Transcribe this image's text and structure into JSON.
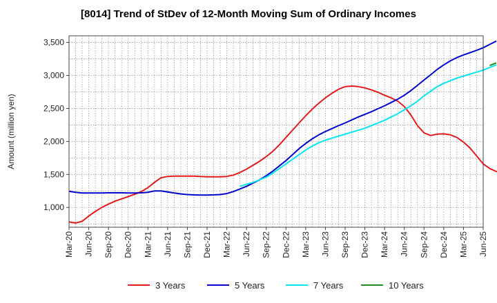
{
  "chart_data": {
    "type": "line",
    "title": "[8014]  Trend of StDev of 12-Month Moving Sum of Ordinary Incomes",
    "ylabel": "Amount (million yen)",
    "xlabel": "",
    "ylim": [
      700,
      3600
    ],
    "yticks": [
      1000,
      1500,
      2000,
      2500,
      3000,
      3500
    ],
    "ytick_labels": [
      "1,000",
      "1,500",
      "2,000",
      "2,500",
      "3,000",
      "3,500"
    ],
    "x_categories": [
      "Mar-20",
      "Jun-20",
      "Sep-20",
      "Dec-20",
      "Mar-21",
      "Jun-21",
      "Sep-21",
      "Dec-21",
      "Mar-22",
      "Jun-22",
      "Sep-22",
      "Dec-22",
      "Mar-23",
      "Jun-23",
      "Sep-23",
      "Dec-23",
      "Mar-24",
      "Jun-24",
      "Sep-24",
      "Dec-24",
      "Mar-25",
      "Jun-25"
    ],
    "grid": true,
    "legend_position": "bottom",
    "series": [
      {
        "name": "3 Years",
        "color": "#e31a1c",
        "start_index": 0,
        "values": [
          780,
          765,
          790,
          870,
          940,
          1000,
          1050,
          1095,
          1130,
          1165,
          1200,
          1240,
          1300,
          1380,
          1450,
          1470,
          1475,
          1475,
          1475,
          1475,
          1470,
          1465,
          1465,
          1465,
          1470,
          1490,
          1530,
          1580,
          1640,
          1700,
          1770,
          1850,
          1950,
          2060,
          2170,
          2280,
          2390,
          2490,
          2580,
          2660,
          2730,
          2790,
          2830,
          2840,
          2830,
          2810,
          2780,
          2745,
          2700,
          2660,
          2610,
          2530,
          2400,
          2240,
          2130,
          2090,
          2110,
          2115,
          2100,
          2060,
          1990,
          1900,
          1780,
          1660,
          1590,
          1545,
          1535
        ]
      },
      {
        "name": "5 Years",
        "color": "#0000cd",
        "start_index": 0,
        "values": [
          1245,
          1230,
          1220,
          1220,
          1220,
          1220,
          1222,
          1222,
          1222,
          1220,
          1220,
          1222,
          1230,
          1250,
          1250,
          1235,
          1220,
          1205,
          1195,
          1190,
          1188,
          1188,
          1190,
          1195,
          1210,
          1240,
          1280,
          1320,
          1370,
          1420,
          1480,
          1550,
          1630,
          1710,
          1800,
          1890,
          1970,
          2040,
          2100,
          2150,
          2195,
          2240,
          2280,
          2325,
          2370,
          2410,
          2450,
          2495,
          2540,
          2590,
          2640,
          2700,
          2770,
          2850,
          2930,
          3010,
          3090,
          3160,
          3220,
          3270,
          3310,
          3345,
          3380,
          3420,
          3470,
          3520
        ]
      },
      {
        "name": "7 Years",
        "color": "#00e5ee",
        "start_index": 26,
        "values": [
          1320,
          1350,
          1380,
          1420,
          1460,
          1520,
          1590,
          1660,
          1730,
          1800,
          1870,
          1930,
          1980,
          2020,
          2050,
          2080,
          2110,
          2140,
          2170,
          2200,
          2240,
          2280,
          2320,
          2370,
          2420,
          2480,
          2540,
          2610,
          2690,
          2760,
          2830,
          2880,
          2920,
          2960,
          2990,
          3020,
          3050,
          3080,
          3120,
          3160
        ]
      },
      {
        "name": "10 Years",
        "color": "#228b22",
        "start_index": 64,
        "values": [
          3150,
          3190
        ]
      }
    ]
  }
}
